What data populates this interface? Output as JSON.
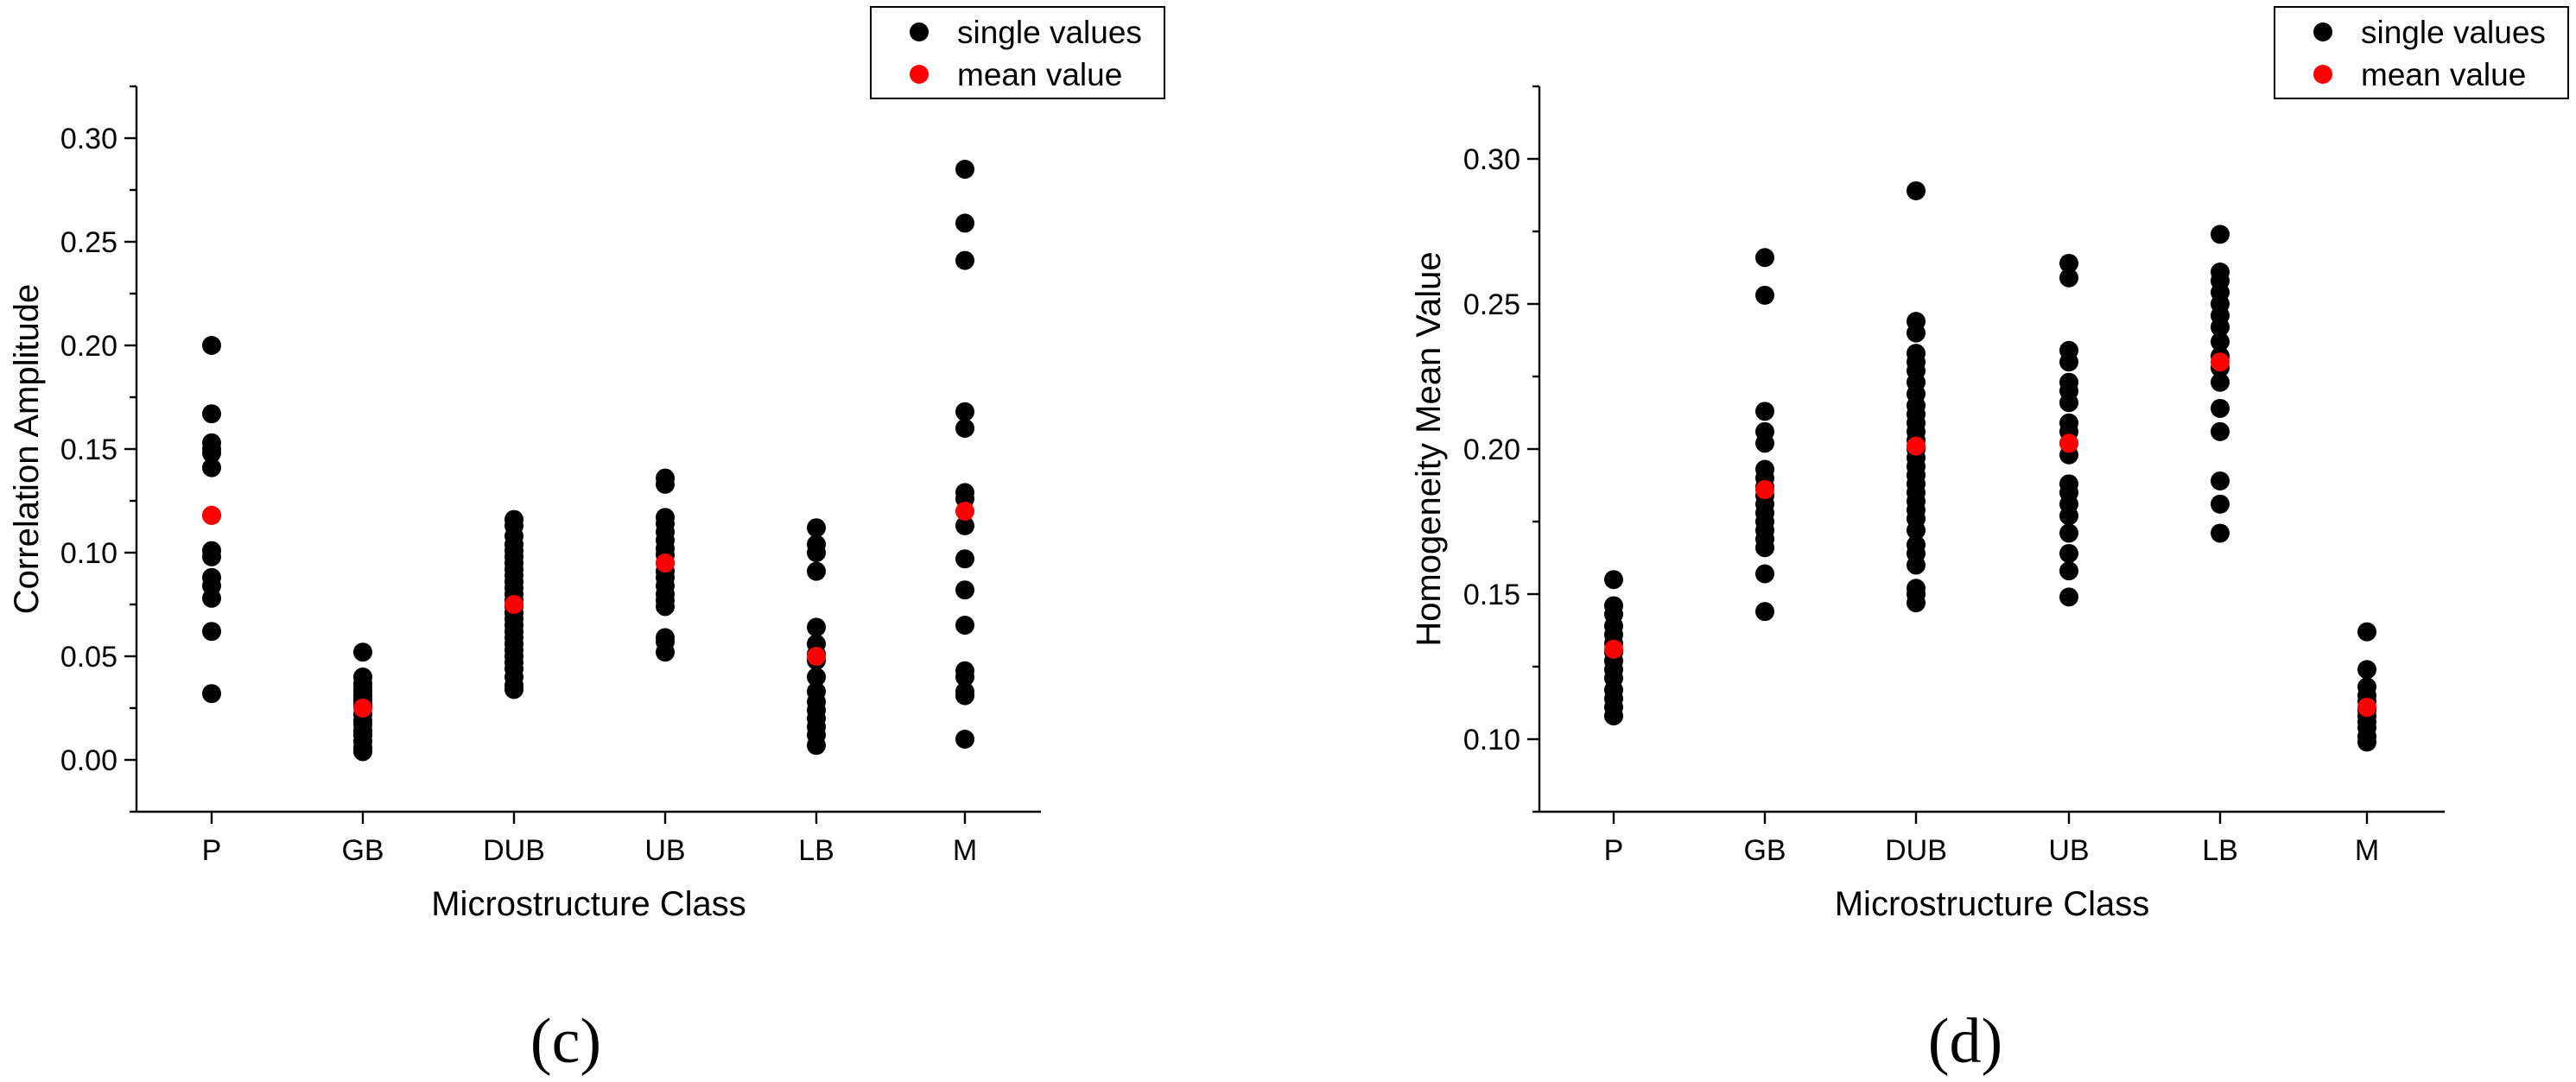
{
  "chart_data": [
    {
      "type": "scatter",
      "panel_label": "(c)",
      "title": "",
      "xlabel": "Microstructure Class",
      "ylabel": "Correlation Amplitude",
      "categories": [
        "P",
        "GB",
        "DUB",
        "UB",
        "LB",
        "M"
      ],
      "ylim": [
        -0.025,
        0.325
      ],
      "yticks": [
        "0.00",
        "0.05",
        "0.10",
        "0.15",
        "0.20",
        "0.25",
        "0.30"
      ],
      "ytick_values": [
        0,
        0.05,
        0.1,
        0.15,
        0.2,
        0.25,
        0.3
      ],
      "grid": false,
      "legend_position": "top-right",
      "legend": {
        "single": "single values",
        "mean": "mean value"
      },
      "colors": {
        "single": "#000000",
        "mean": "#ff0000"
      },
      "series": [
        {
          "name": "single values",
          "values": [
            [
              0.2,
              0.167,
              0.153,
              0.15,
              0.148,
              0.141,
              0.118,
              0.101,
              0.098,
              0.088,
              0.084,
              0.078,
              0.062,
              0.032
            ],
            [
              0.052,
              0.04,
              0.037,
              0.035,
              0.033,
              0.031,
              0.029,
              0.027,
              0.025,
              0.022,
              0.019,
              0.017,
              0.014,
              0.012,
              0.009,
              0.006,
              0.004
            ],
            [
              0.116,
              0.113,
              0.108,
              0.104,
              0.101,
              0.098,
              0.095,
              0.092,
              0.089,
              0.086,
              0.083,
              0.08,
              0.077,
              0.074,
              0.071,
              0.068,
              0.065,
              0.062,
              0.059,
              0.056,
              0.053,
              0.05,
              0.047,
              0.044,
              0.04,
              0.036,
              0.034
            ],
            [
              0.136,
              0.133,
              0.117,
              0.114,
              0.11,
              0.106,
              0.102,
              0.099,
              0.095,
              0.091,
              0.088,
              0.084,
              0.08,
              0.077,
              0.074,
              0.059,
              0.057,
              0.052
            ],
            [
              0.112,
              0.104,
              0.1,
              0.091,
              0.064,
              0.056,
              0.051,
              0.048,
              0.04,
              0.033,
              0.028,
              0.024,
              0.02,
              0.016,
              0.012,
              0.007
            ],
            [
              0.285,
              0.259,
              0.241,
              0.168,
              0.16,
              0.129,
              0.126,
              0.113,
              0.097,
              0.082,
              0.065,
              0.043,
              0.04,
              0.033,
              0.031,
              0.01
            ]
          ]
        },
        {
          "name": "mean value",
          "values": [
            0.118,
            0.025,
            0.075,
            0.095,
            0.05,
            0.12
          ]
        }
      ]
    },
    {
      "type": "scatter",
      "panel_label": "(d)",
      "title": "",
      "xlabel": "Microstructure Class",
      "ylabel": "Homogeneity Mean Value",
      "categories": [
        "P",
        "GB",
        "DUB",
        "UB",
        "LB",
        "M"
      ],
      "ylim": [
        0.075,
        0.325
      ],
      "yticks": [
        "0.10",
        "0.15",
        "0.20",
        "0.25",
        "0.30"
      ],
      "ytick_values": [
        0.1,
        0.15,
        0.2,
        0.25,
        0.3
      ],
      "grid": false,
      "legend_position": "top-right",
      "legend": {
        "single": "single values",
        "mean": "mean value"
      },
      "colors": {
        "single": "#000000",
        "mean": "#ff0000"
      },
      "series": [
        {
          "name": "single values",
          "values": [
            [
              0.155,
              0.146,
              0.143,
              0.139,
              0.136,
              0.133,
              0.13,
              0.127,
              0.124,
              0.121,
              0.117,
              0.114,
              0.111,
              0.108
            ],
            [
              0.266,
              0.253,
              0.213,
              0.206,
              0.202,
              0.193,
              0.19,
              0.187,
              0.184,
              0.181,
              0.178,
              0.175,
              0.172,
              0.169,
              0.166,
              0.157,
              0.144
            ],
            [
              0.289,
              0.244,
              0.24,
              0.233,
              0.23,
              0.227,
              0.223,
              0.219,
              0.215,
              0.212,
              0.209,
              0.206,
              0.203,
              0.2,
              0.197,
              0.194,
              0.191,
              0.188,
              0.185,
              0.182,
              0.179,
              0.176,
              0.172,
              0.167,
              0.164,
              0.16,
              0.152,
              0.15,
              0.147
            ],
            [
              0.264,
              0.259,
              0.234,
              0.23,
              0.223,
              0.22,
              0.216,
              0.209,
              0.206,
              0.202,
              0.198,
              0.188,
              0.185,
              0.181,
              0.177,
              0.171,
              0.164,
              0.158,
              0.149
            ],
            [
              0.274,
              0.261,
              0.258,
              0.254,
              0.25,
              0.246,
              0.242,
              0.237,
              0.232,
              0.228,
              0.223,
              0.214,
              0.206,
              0.189,
              0.181,
              0.171
            ],
            [
              0.137,
              0.124,
              0.118,
              0.115,
              0.113,
              0.11,
              0.108,
              0.106,
              0.104,
              0.101,
              0.099
            ]
          ]
        },
        {
          "name": "mean value",
          "values": [
            0.131,
            0.186,
            0.201,
            0.202,
            0.23,
            0.111
          ]
        }
      ]
    }
  ]
}
